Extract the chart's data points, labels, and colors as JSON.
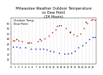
{
  "title": "Milwaukee Weather Outdoor Temperature\nvs Dew Point\n(24 Hours)",
  "title_fontsize": 3.8,
  "background_color": "#ffffff",
  "grid_color": "#bbbbbb",
  "xlim": [
    0,
    24
  ],
  "ylim": [
    20,
    65
  ],
  "temp_color": "#cc0000",
  "dew_color": "#0000cc",
  "black_color": "#000000",
  "temp_data_x": [
    0.5,
    1.0,
    2.0,
    3.0,
    4.5,
    5.5,
    7.5,
    8.5,
    9.5,
    10.5,
    11.5,
    12.5,
    13.0,
    14.0,
    15.5,
    16.5,
    17.5,
    18.5,
    19.5,
    20.5,
    21.5,
    22.5,
    23.0,
    23.5
  ],
  "temp_data_y": [
    43,
    43,
    43,
    42,
    41,
    41,
    42,
    43,
    45,
    48,
    51,
    54,
    57,
    58,
    55,
    52,
    49,
    48,
    50,
    55,
    60,
    63,
    64,
    63
  ],
  "dew_data_x": [
    0.5,
    1.5,
    2.5,
    4.0,
    5.5,
    7.0,
    8.0,
    9.0,
    10.0,
    11.0,
    12.0,
    13.5,
    15.0,
    16.0,
    17.0,
    18.0,
    19.0,
    20.0,
    21.0,
    22.0,
    23.0,
    23.5
  ],
  "dew_data_y": [
    37,
    37,
    36,
    36,
    35,
    35,
    35,
    35,
    34,
    33,
    32,
    31,
    30,
    30,
    31,
    33,
    36,
    38,
    41,
    44,
    46,
    46
  ],
  "black_data_x": [
    1.5,
    5.0,
    8.0,
    13.5,
    16.5,
    21.0
  ],
  "black_data_y": [
    44,
    41,
    44,
    58,
    51,
    61
  ],
  "marker_size": 1.5,
  "ytick_vals": [
    25,
    30,
    35,
    40,
    45,
    50,
    55,
    60
  ],
  "ytick_labels": [
    "25",
    "30",
    "35",
    "40",
    "45",
    "50",
    "55",
    "60"
  ],
  "xtick_vals": [
    0,
    1,
    2,
    3,
    4,
    5,
    6,
    7,
    8,
    9,
    10,
    11,
    12,
    13,
    14,
    15,
    16,
    17,
    18,
    19,
    20,
    21,
    22,
    23
  ],
  "tick_fontsize": 2.5,
  "legend_labels": [
    "Outdoor Temp",
    "Dew Point"
  ],
  "legend_fontsize": 3.0
}
